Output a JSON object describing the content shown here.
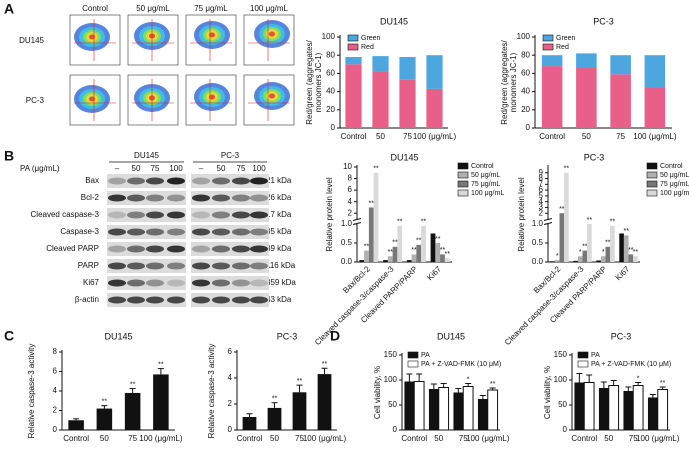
{
  "panels": [
    "A",
    "B",
    "C",
    "D"
  ],
  "flow": {
    "columns": [
      "Control",
      "50 μg/mL",
      "75 μg/mL",
      "100 μg/mL"
    ],
    "rows": [
      "DU145",
      "PC-3"
    ]
  },
  "blot": {
    "treatment_label": "PA (μg/mL)",
    "groups": [
      "DU145",
      "PC-3"
    ],
    "lanes": [
      "–",
      "50",
      "75",
      "100"
    ],
    "proteins": [
      "Bax",
      "Bcl-2",
      "Cleaved caspase-3",
      "Caspase-3",
      "Cleaved PARP",
      "PARP",
      "Ki67",
      "β-actin"
    ],
    "sizes": [
      "21 kDa",
      "26 kDa",
      "17 kDa",
      "35 kDa",
      "89 kDa",
      "116 kDa",
      "359 kDa",
      "43 kDa"
    ]
  },
  "chart_data": [
    {
      "type": "bar",
      "stacked": true,
      "title": "DU145",
      "y_label": [
        "Red/green (aggregates/",
        "monomers JC-1)"
      ],
      "categories": [
        "Control",
        "50",
        "75",
        "100 (μg/mL)"
      ],
      "series": [
        {
          "name": "Red",
          "color": "#e8608a",
          "values": [
            70,
            62,
            53,
            43
          ]
        },
        {
          "name": "Green",
          "color": "#4da6de",
          "values": [
            8,
            17,
            25,
            37
          ]
        }
      ],
      "ylim": [
        0,
        100
      ],
      "yticks": [
        0,
        20,
        40,
        60,
        80,
        100
      ]
    },
    {
      "type": "bar",
      "stacked": true,
      "title": "PC-3",
      "y_label": [
        "Red/green (aggregates/",
        "monomers JC-1)"
      ],
      "categories": [
        "Control",
        "50",
        "75",
        "100 (μg/mL)"
      ],
      "series": [
        {
          "name": "Red",
          "color": "#e8608a",
          "values": [
            68,
            67,
            59,
            45
          ]
        },
        {
          "name": "Green",
          "color": "#4da6de",
          "values": [
            12,
            15,
            21,
            35
          ]
        }
      ],
      "ylim": [
        0,
        100
      ],
      "yticks": [
        0,
        20,
        40,
        60,
        80,
        100
      ]
    },
    {
      "type": "bar",
      "title": "DU145",
      "y_label": [
        "Relative protein level"
      ],
      "ybreak": 1,
      "categories": [
        "Bax/Bcl-2",
        "Cleaved caspase-3/caspase-3",
        "Cleaved PARP/PARP",
        "Ki67"
      ],
      "series": [
        {
          "name": "Control",
          "color": "#111111",
          "values": [
            0.05,
            0.05,
            0.05,
            0.75
          ],
          "annotations": [
            null,
            null,
            null,
            null
          ]
        },
        {
          "name": "50 μg/mL",
          "color": "#b0b0b0",
          "values": [
            0.3,
            0.15,
            0.2,
            0.5
          ],
          "annotations": [
            "**",
            "**",
            "**",
            "**"
          ]
        },
        {
          "name": "75 μg/mL",
          "color": "#777777",
          "values": [
            3,
            0.4,
            0.45,
            0.2
          ],
          "annotations": [
            "**",
            "**",
            "**",
            "**"
          ]
        },
        {
          "name": "100 μg/mL",
          "color": "#d9d9d9",
          "values": [
            9,
            0.95,
            0.95,
            0.1
          ],
          "annotations": [
            "**",
            "**",
            "**",
            "**"
          ]
        }
      ],
      "ylim": [
        0,
        10
      ],
      "yticks": [
        {
          "value": 0,
          "label": "0.0"
        },
        0.5,
        {
          "value": 1,
          "label": "1.0"
        },
        2,
        4,
        6,
        8,
        10
      ]
    },
    {
      "type": "bar",
      "title": "PC-3",
      "y_label": [
        "Relative protein level"
      ],
      "ybreak": 1,
      "categories": [
        "Bax/Bcl-2",
        "Cleaved caspase-3/caspase-3",
        "Cleaved PARP/PARP",
        "Ki67"
      ],
      "series": [
        {
          "name": "Control",
          "color": "#111111",
          "values": [
            0.02,
            0.03,
            0.04,
            0.75
          ],
          "annotations": [
            null,
            null,
            null,
            null
          ]
        },
        {
          "name": "50 μg/mL",
          "color": "#b0b0b0",
          "values": [
            0.05,
            0.15,
            0.15,
            0.7
          ],
          "annotations": [
            "*",
            "*",
            "*",
            "**"
          ]
        },
        {
          "name": "75 μg/mL",
          "color": "#777777",
          "values": [
            2,
            0.3,
            0.4,
            0.2
          ],
          "annotations": [
            "**",
            "**",
            "**",
            "**"
          ]
        },
        {
          "name": "100 μg/mL",
          "color": "#d9d9d9",
          "values": [
            9,
            1.0,
            0.95,
            0.15
          ],
          "annotations": [
            "**",
            "**",
            "**",
            "**"
          ]
        }
      ],
      "ylim": [
        0,
        10
      ],
      "yticks": [
        {
          "value": 0,
          "label": "0.0"
        },
        0.5,
        {
          "value": 1,
          "label": "1.0"
        },
        2,
        3,
        4,
        5,
        6,
        7,
        8,
        9
      ]
    },
    {
      "type": "bar",
      "title": "DU145",
      "y_label": [
        "Relative caspase-3 activity"
      ],
      "categories": [
        "Control",
        "50",
        "75",
        "100 (μg/mL)"
      ],
      "color": "#111111",
      "values": [
        1.0,
        2.2,
        3.8,
        5.7
      ],
      "errors": [
        0.15,
        0.3,
        0.45,
        0.6
      ],
      "annotations": [
        null,
        "**",
        "**",
        "**"
      ],
      "ylim": [
        0,
        8
      ],
      "yticks": [
        0,
        2,
        4,
        6,
        8
      ]
    },
    {
      "type": "bar",
      "title": "PC-3",
      "y_label": [
        "Relative caspase-3 activity"
      ],
      "categories": [
        "Control",
        "50",
        "75",
        "100 (μg/mL)"
      ],
      "color": "#111111",
      "values": [
        1.0,
        1.7,
        2.9,
        4.3
      ],
      "errors": [
        0.25,
        0.4,
        0.55,
        0.45
      ],
      "annotations": [
        null,
        "**",
        "**",
        "**"
      ],
      "ylim": [
        0,
        6
      ],
      "yticks": [
        0,
        2,
        4,
        6
      ]
    },
    {
      "type": "bar",
      "title": "DU145",
      "y_label": [
        "Cell viability, %"
      ],
      "categories": [
        "Control",
        "50",
        "75",
        "100 (μg/mL)"
      ],
      "series": [
        {
          "name": "PA",
          "color": "#111111",
          "values": [
            97,
            82,
            75,
            62
          ],
          "errors": [
            15,
            10,
            8,
            7
          ],
          "annotations": [
            null,
            null,
            null,
            null
          ]
        },
        {
          "name": "PA + Z-VAD-FMK (10 μM)",
          "color": "#ffffff",
          "values": [
            97,
            85,
            87,
            80
          ],
          "errors": [
            15,
            8,
            6,
            4
          ],
          "annotations": [
            null,
            null,
            "*",
            "**"
          ]
        }
      ],
      "ylim": [
        0,
        150
      ],
      "yticks": [
        0,
        50,
        100,
        150
      ]
    },
    {
      "type": "bar",
      "title": "PC-3",
      "y_label": [
        "Cell viability, %"
      ],
      "categories": [
        "Control",
        "50",
        "75",
        "100 (μg/mL)"
      ],
      "series": [
        {
          "name": "PA",
          "color": "#111111",
          "values": [
            95,
            84,
            78,
            65
          ],
          "errors": [
            18,
            12,
            8,
            6
          ],
          "annotations": [
            null,
            null,
            null,
            null
          ]
        },
        {
          "name": "PA + Z-VAD-FMK (10 μM)",
          "color": "#ffffff",
          "values": [
            95,
            89,
            89,
            81
          ],
          "errors": [
            15,
            10,
            6,
            5
          ],
          "annotations": [
            null,
            null,
            "*",
            "**"
          ]
        }
      ],
      "ylim": [
        0,
        150
      ],
      "yticks": [
        0,
        50,
        100,
        150
      ]
    }
  ]
}
